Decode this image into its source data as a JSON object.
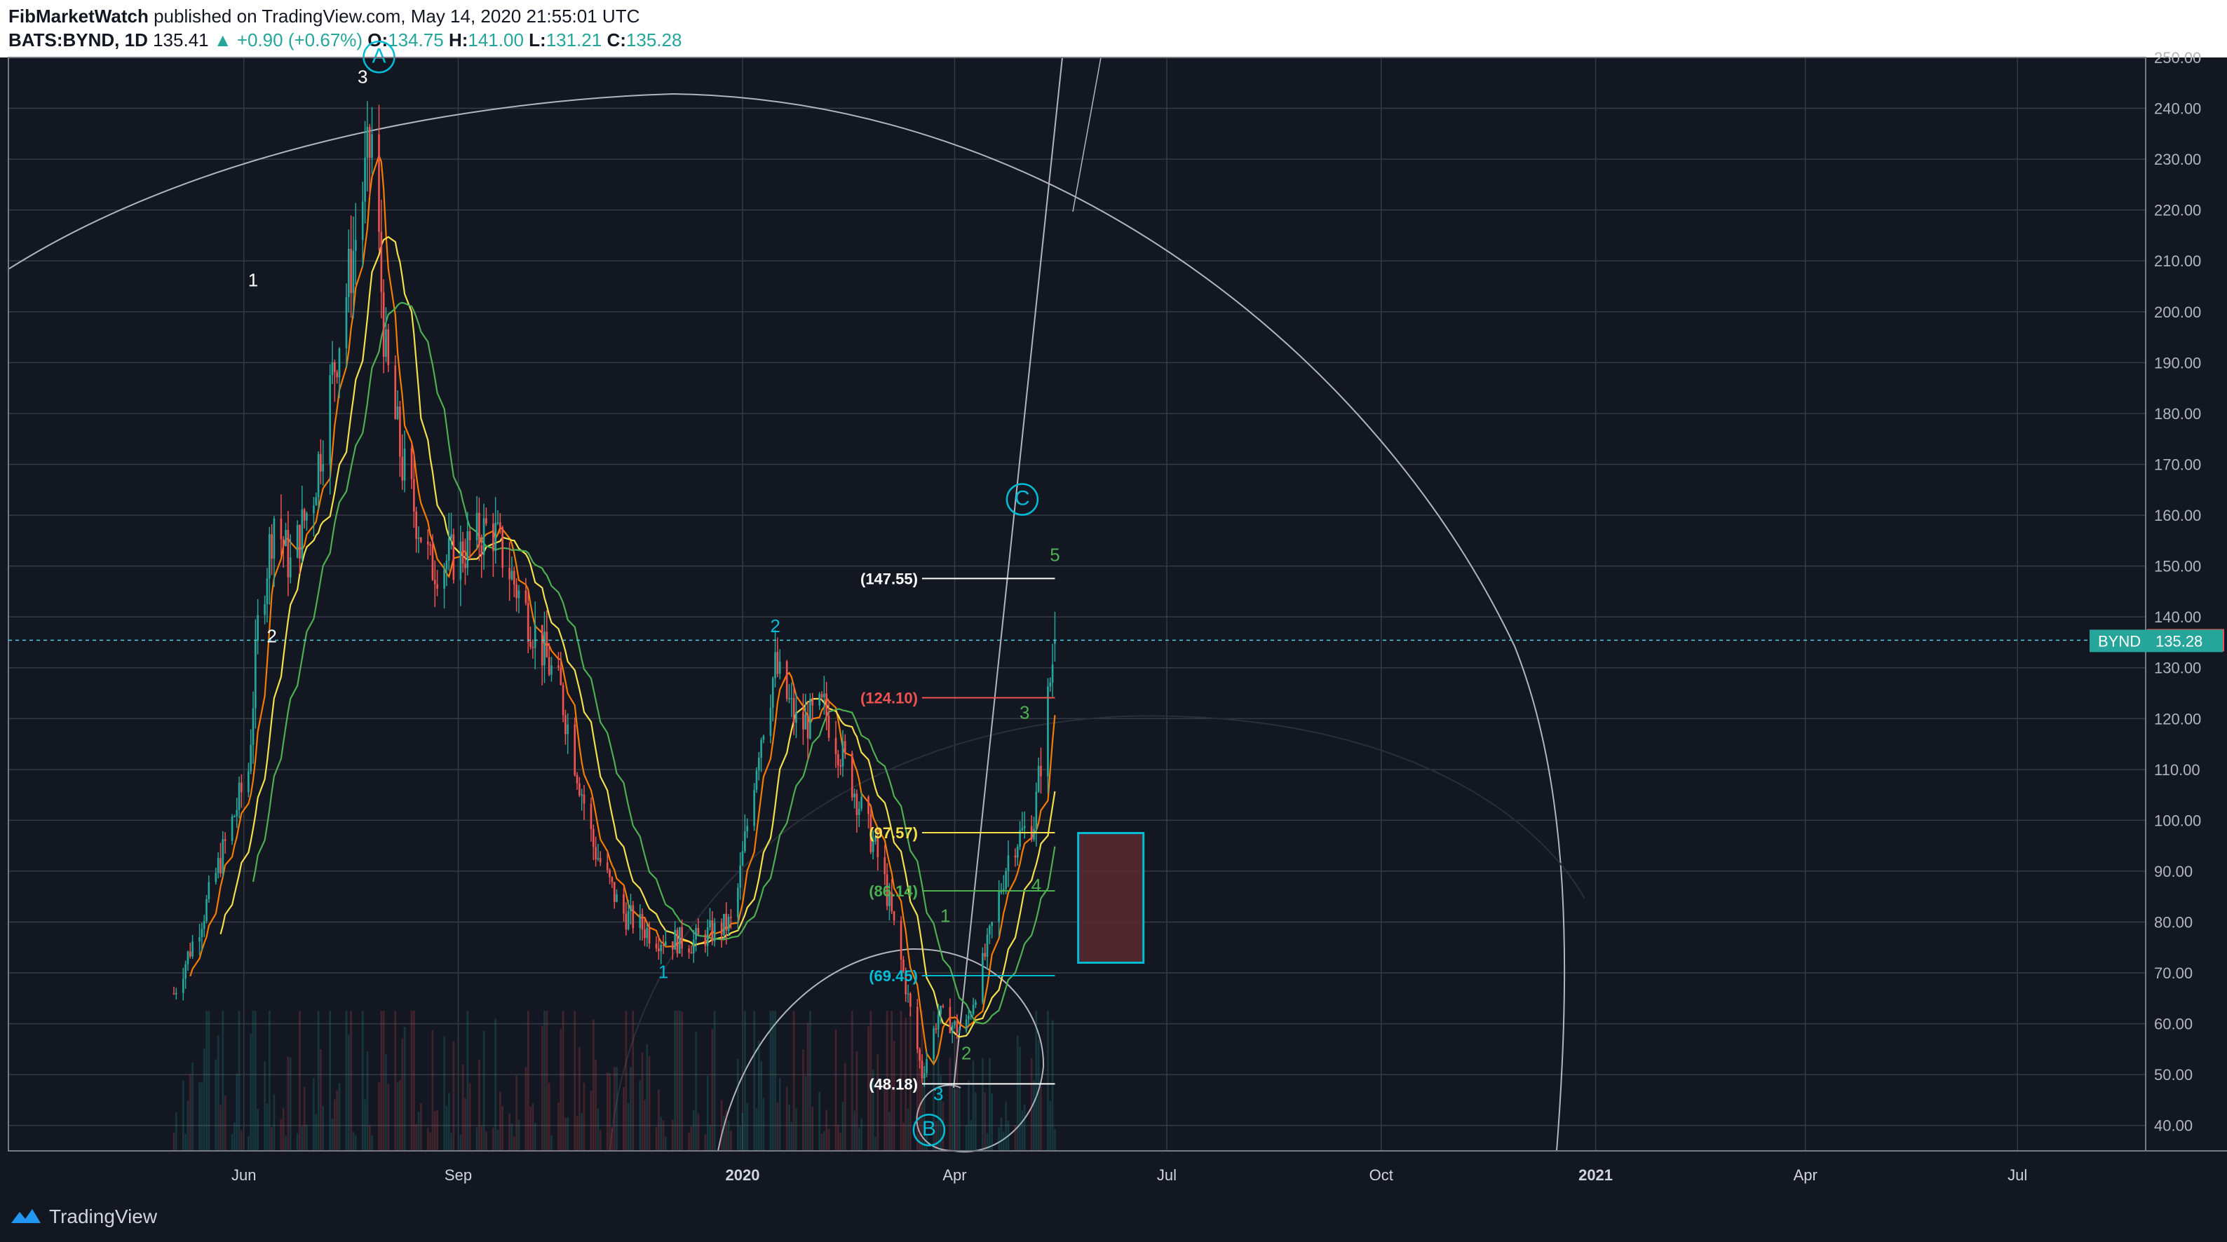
{
  "header": {
    "author": "FibMarketWatch",
    "published_text": "published on TradingView.com, May 14, 2020 21:55:01 UTC",
    "symbol": "BATS:BYND, 1D",
    "last": "135.41",
    "change": "▲ +0.90 (+0.67%)",
    "o_label": "O:",
    "o_value": "134.75",
    "h_label": "H:",
    "h_value": "141.00",
    "l_label": "L:",
    "l_value": "131.21",
    "c_label": "C:",
    "c_value": "135.28"
  },
  "footer": {
    "brand": "TradingView"
  },
  "colors": {
    "background": "#131722",
    "grid": "#363a45",
    "up": "#26a69a",
    "down": "#ef5350",
    "ma_orange": "#f57c00",
    "ma_yellow": "#f4e04d",
    "ma_green": "#4caf50",
    "cyan": "#00bcd4",
    "fib_arc": "#b2b5be"
  },
  "chart_data": {
    "type": "candlestick",
    "x_axis_ticks": [
      "Jun",
      "Sep",
      "2020",
      "Apr",
      "Jul",
      "Oct",
      "2021",
      "Apr",
      "Jul"
    ],
    "y_axis_ticks": [
      "250.00",
      "240.00",
      "230.00",
      "220.00",
      "210.00",
      "200.00",
      "190.00",
      "180.00",
      "170.00",
      "160.00",
      "150.00",
      "140.00",
      "130.00",
      "120.00",
      "110.00",
      "100.00",
      "90.00",
      "80.00",
      "70.00",
      "60.00",
      "50.00",
      "40.00"
    ],
    "ylim": [
      35,
      250
    ],
    "last_price_label": "135.41",
    "close_label_symbol": "BYND",
    "close_label_value": "135.28",
    "close_series": [
      {
        "date": "2019-05-02",
        "close": 66
      },
      {
        "date": "2019-05-15",
        "close": 82
      },
      {
        "date": "2019-06-03",
        "close": 110
      },
      {
        "date": "2019-06-07",
        "close": 138
      },
      {
        "date": "2019-06-14",
        "close": 160
      },
      {
        "date": "2019-06-21",
        "close": 150
      },
      {
        "date": "2019-07-01",
        "close": 165
      },
      {
        "date": "2019-07-10",
        "close": 190
      },
      {
        "date": "2019-07-26",
        "close": 234
      },
      {
        "date": "2019-08-01",
        "close": 190
      },
      {
        "date": "2019-08-08",
        "close": 170
      },
      {
        "date": "2019-08-20",
        "close": 150
      },
      {
        "date": "2019-09-01",
        "close": 152
      },
      {
        "date": "2019-09-15",
        "close": 158
      },
      {
        "date": "2019-10-01",
        "close": 140
      },
      {
        "date": "2019-10-15",
        "close": 125
      },
      {
        "date": "2019-10-29",
        "close": 95
      },
      {
        "date": "2019-11-10",
        "close": 82
      },
      {
        "date": "2019-11-25",
        "close": 77
      },
      {
        "date": "2019-12-10",
        "close": 76
      },
      {
        "date": "2019-12-28",
        "close": 80
      },
      {
        "date": "2020-01-08",
        "close": 115
      },
      {
        "date": "2020-01-15",
        "close": 130
      },
      {
        "date": "2020-01-25",
        "close": 118
      },
      {
        "date": "2020-02-05",
        "close": 122
      },
      {
        "date": "2020-02-15",
        "close": 110
      },
      {
        "date": "2020-03-01",
        "close": 90
      },
      {
        "date": "2020-03-10",
        "close": 70
      },
      {
        "date": "2020-03-18",
        "close": 50
      },
      {
        "date": "2020-03-25",
        "close": 62
      },
      {
        "date": "2020-04-05",
        "close": 58
      },
      {
        "date": "2020-04-15",
        "close": 75
      },
      {
        "date": "2020-04-25",
        "close": 95
      },
      {
        "date": "2020-05-05",
        "close": 100
      },
      {
        "date": "2020-05-14",
        "close": 135.28
      }
    ],
    "wave_labels": [
      {
        "text": "1",
        "date": "2019-06-05",
        "price": 205,
        "color": "#ffffff"
      },
      {
        "text": "2",
        "date": "2019-06-13",
        "price": 135,
        "color": "#ffffff"
      },
      {
        "text": "3",
        "date": "2019-07-22",
        "price": 245,
        "color": "#ffffff"
      },
      {
        "text": "A",
        "date": "2019-07-29",
        "price": 249,
        "color": "#00bcd4",
        "circled": true
      },
      {
        "text": "C",
        "date": "2020-04-30",
        "price": 162,
        "color": "#00bcd4",
        "circled": true
      },
      {
        "text": "5",
        "date": "2020-05-14",
        "price": 151,
        "color": "#4caf50"
      },
      {
        "text": "2",
        "date": "2020-01-15",
        "price": 137,
        "color": "#00bcd4"
      },
      {
        "text": "1",
        "date": "2019-11-28",
        "price": 69,
        "color": "#00bcd4"
      },
      {
        "text": "3",
        "date": "2020-03-25",
        "price": 45,
        "color": "#00bcd4"
      },
      {
        "text": "B",
        "date": "2020-03-21",
        "price": 38,
        "color": "#00bcd4",
        "circled": true
      },
      {
        "text": "1",
        "date": "2020-03-28",
        "price": 80,
        "color": "#4caf50"
      },
      {
        "text": "2",
        "date": "2020-04-06",
        "price": 53,
        "color": "#4caf50"
      },
      {
        "text": "3",
        "date": "2020-05-01",
        "price": 120,
        "color": "#4caf50"
      },
      {
        "text": "4",
        "date": "2020-05-06",
        "price": 86,
        "color": "#4caf50"
      }
    ],
    "fib_levels": [
      {
        "label": "(147.55)",
        "price": 147.55,
        "color": "#ffffff"
      },
      {
        "label": "(124.10)",
        "price": 124.1,
        "color": "#ef5350"
      },
      {
        "label": "(97.57)",
        "price": 97.57,
        "color": "#f4e04d"
      },
      {
        "label": "(86.14)",
        "price": 86.14,
        "color": "#4caf50"
      },
      {
        "label": "(69.45)",
        "price": 69.45,
        "color": "#00bcd4"
      },
      {
        "label": "(48.18)",
        "price": 48.18,
        "color": "#ffffff"
      }
    ],
    "target_box": {
      "from": "2020-05-24",
      "to": "2020-06-21",
      "top": 97.5,
      "bottom": 72
    },
    "grid": true
  }
}
